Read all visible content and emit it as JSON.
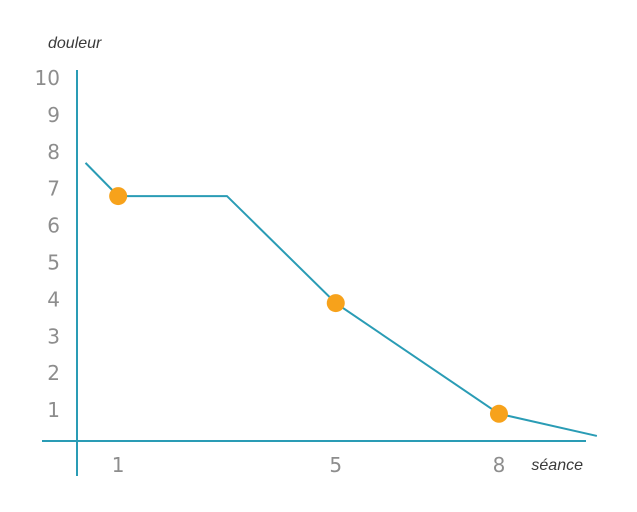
{
  "chart_data": {
    "type": "line",
    "title": "",
    "xlabel": "séance",
    "ylabel": "douleur",
    "xlim": [
      -0.4,
      9.6
    ],
    "ylim": [
      0,
      10
    ],
    "x_ticks": [
      1,
      5,
      8
    ],
    "y_ticks": [
      1,
      2,
      3,
      4,
      5,
      6,
      7,
      8,
      9,
      10
    ],
    "grid": false,
    "legend": "none",
    "series": [
      {
        "line_points": [
          {
            "x": 0.4,
            "y": 7.7
          },
          {
            "x": 1.0,
            "y": 6.8
          },
          {
            "x": 3.0,
            "y": 6.8
          },
          {
            "x": 5.0,
            "y": 3.9
          },
          {
            "x": 8.0,
            "y": 0.9
          },
          {
            "x": 9.8,
            "y": 0.3
          }
        ],
        "markers": [
          {
            "x": 1,
            "y": 6.8
          },
          {
            "x": 5,
            "y": 3.9
          },
          {
            "x": 8,
            "y": 0.9
          }
        ]
      }
    ],
    "colors": {
      "axis": "#2a9cb5",
      "line": "#2a9cb5",
      "marker": "#f7a21b",
      "tick_label": "#8d8d8d",
      "axis_title": "#3a3a3a"
    }
  }
}
